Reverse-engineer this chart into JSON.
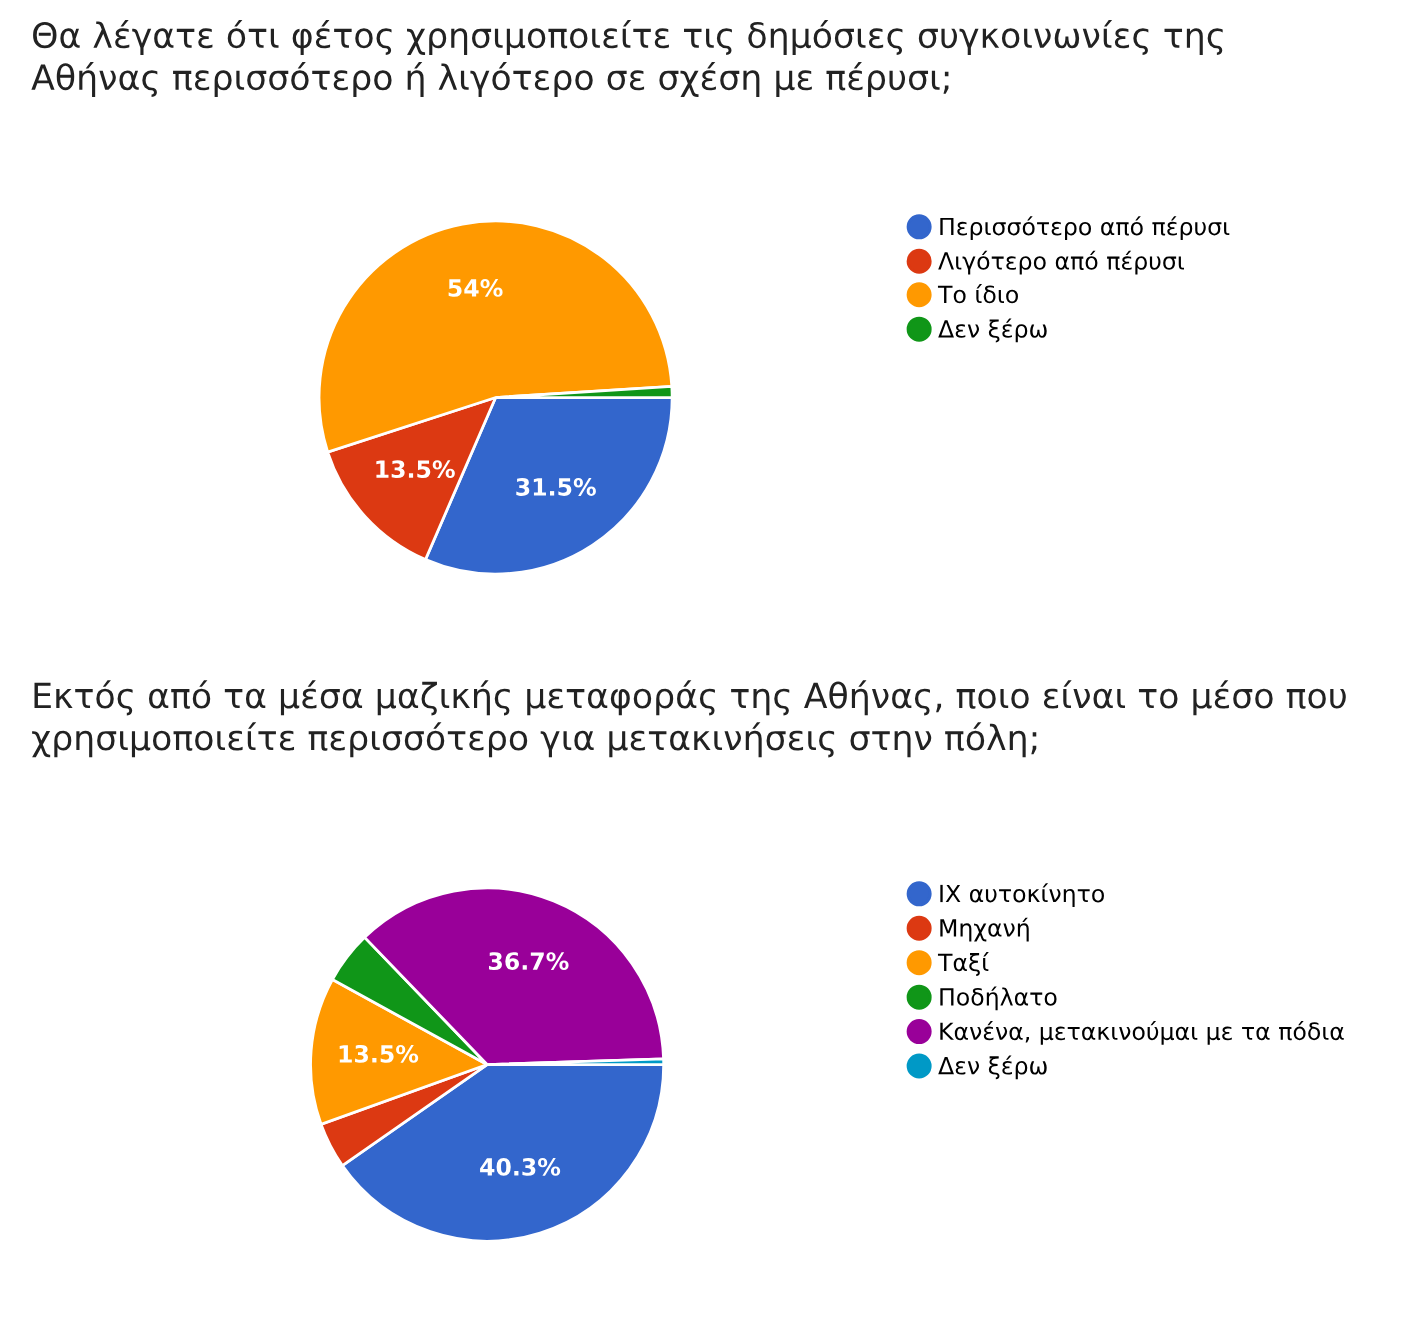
{
  "chart_data": [
    {
      "type": "pie",
      "title": "Θα λέγατε ότι φέτος χρησιμοποιείτε τις δημόσιες συγκοινωνίες της\nΑθήνας περισσότερο ή λιγότερο σε σχέση με πέρυσι;",
      "categories": [
        "Περισσότερο από πέρυσι",
        "Λιγότερο από πέρυσι",
        "Το ίδιο",
        "Δεν ξέρω"
      ],
      "values": [
        31.5,
        13.5,
        54,
        1
      ],
      "colors": [
        "#3366cc",
        "#dc3912",
        "#ff9900",
        "#109618"
      ],
      "value_labels": [
        "31.5%",
        "13.5%",
        "54%",
        null
      ],
      "legend": "right"
    },
    {
      "type": "pie",
      "title": "Εκτός από τα μέσα μαζικής μεταφοράς της Αθήνας, ποιο είναι το μέσο που\nχρησιμοποιείτε περισσότερο για μετακινήσεις στην πόλη;",
      "categories": [
        "ΙΧ αυτοκίνητο",
        "Μηχανή",
        "Ταξί",
        "Ποδήλατο",
        "Κανένα, μετακινούμαι με τα πόδια",
        "Δεν ξέρω"
      ],
      "values": [
        40.3,
        4.2,
        13.5,
        4.8,
        36.7,
        0.5
      ],
      "colors": [
        "#3366cc",
        "#dc3912",
        "#ff9900",
        "#109618",
        "#990099",
        "#0099c6"
      ],
      "value_labels": [
        "40.3%",
        null,
        "13.5%",
        null,
        "36.7%",
        null
      ],
      "legend": "right"
    }
  ]
}
